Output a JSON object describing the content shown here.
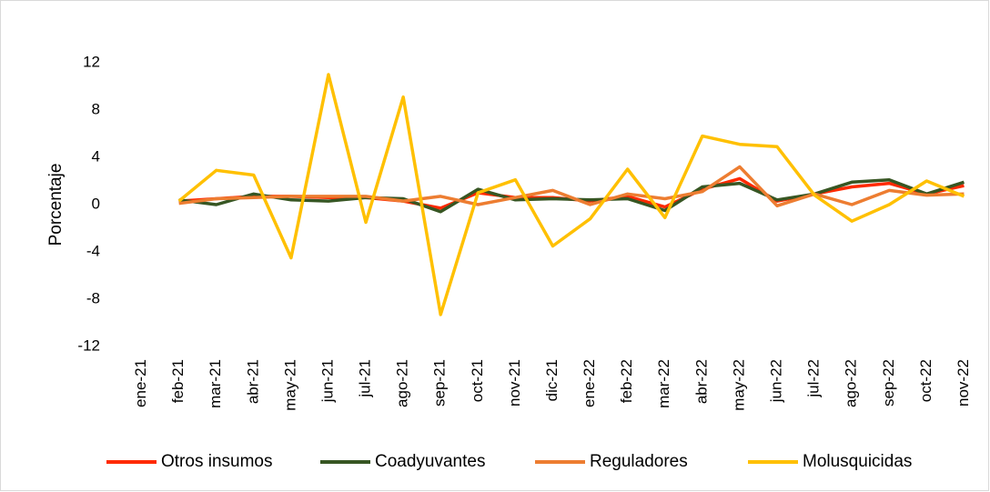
{
  "chart_data": {
    "type": "line",
    "y_label": "Porcentaje",
    "categories": [
      "ene-21",
      "feb-21",
      "mar-21",
      "abr-21",
      "may-21",
      "jun-21",
      "jul-21",
      "ago-21",
      "sep-21",
      "oct-21",
      "nov-21",
      "dic-21",
      "ene-22",
      "feb-22",
      "mar-22",
      "abr-22",
      "may-22",
      "jun-22",
      "jul-22",
      "ago-22",
      "sep-22",
      "oct-22",
      "nov-22"
    ],
    "series": [
      {
        "name": "Otros insumos",
        "color": "#ff2a00",
        "values": [
          null,
          0.3,
          0.5,
          0.7,
          0.7,
          0.6,
          0.6,
          0.3,
          -0.3,
          1.0,
          0.6,
          0.6,
          0.3,
          0.7,
          -0.2,
          1.3,
          2.2,
          0.3,
          0.9,
          1.5,
          1.8,
          0.9,
          1.6
        ]
      },
      {
        "name": "Coadyuvantes",
        "color": "#375623",
        "values": [
          null,
          0.4,
          0.0,
          0.9,
          0.4,
          0.3,
          0.6,
          0.5,
          -0.6,
          1.3,
          0.4,
          0.5,
          0.4,
          0.5,
          -0.5,
          1.5,
          1.8,
          0.4,
          0.9,
          1.9,
          2.1,
          0.9,
          1.9
        ]
      },
      {
        "name": "Reguladores",
        "color": "#ed7d31",
        "values": [
          null,
          0.1,
          0.5,
          0.6,
          0.7,
          0.7,
          0.7,
          0.3,
          0.7,
          0.0,
          0.6,
          1.2,
          0.0,
          0.9,
          0.5,
          1.1,
          3.2,
          -0.1,
          0.9,
          0.0,
          1.2,
          0.8,
          0.9
        ]
      },
      {
        "name": "Molusquicidas",
        "color": "#ffc000",
        "values": [
          null,
          0.3,
          2.9,
          2.5,
          -4.5,
          11.0,
          -1.5,
          9.1,
          -9.3,
          1.0,
          2.1,
          -3.5,
          -1.2,
          3.0,
          -1.1,
          5.8,
          5.1,
          4.9,
          0.8,
          -1.4,
          0.0,
          2.0,
          0.7
        ]
      }
    ],
    "ylim": [
      -12,
      12
    ],
    "yticks": [
      -12,
      -8,
      -4,
      0,
      4,
      8,
      12
    ],
    "grid": false,
    "legend": "bottom"
  }
}
